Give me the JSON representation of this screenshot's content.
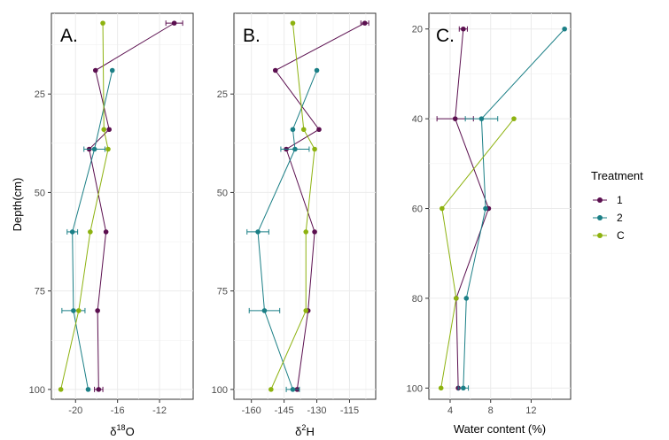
{
  "colors": {
    "1": "#5b0f4f",
    "2": "#1b7f86",
    "C": "#8db20f"
  },
  "legend": {
    "title": "Treatment",
    "items": [
      {
        "key": "1",
        "label": "1"
      },
      {
        "key": "2",
        "label": "2"
      },
      {
        "key": "C",
        "label": "C"
      }
    ]
  },
  "chart_data": [
    {
      "type": "line",
      "panel_label": "A.",
      "xlabel": "δ18O",
      "xlabel_main": "δ",
      "xlabel_sup": "18",
      "xlabel_tail": "O",
      "ylabel": "Depth(cm)",
      "xlim": [
        -22.3,
        -8.8
      ],
      "ylim": [
        4.5,
        102.5
      ],
      "y_reversed": true,
      "grid": true,
      "x_ticks": [
        -20,
        -16,
        -12
      ],
      "x_tick_labels": [
        "-20",
        "-16",
        "-12"
      ],
      "y_ticks": [
        25,
        50,
        75,
        100
      ],
      "y_tick_labels": [
        "25",
        "50",
        "75",
        "100"
      ],
      "series": [
        {
          "name": "1",
          "points": [
            {
              "x": -10.6,
              "y": 7,
              "xerr": 0.8
            },
            {
              "x": -18.1,
              "y": 19,
              "xerr": 0.0
            },
            {
              "x": -16.8,
              "y": 34,
              "xerr": 0.0
            },
            {
              "x": -18.7,
              "y": 39,
              "xerr": 0.0
            },
            {
              "x": -17.1,
              "y": 60,
              "xerr": 0.0
            },
            {
              "x": -17.9,
              "y": 80,
              "xerr": 0.0
            },
            {
              "x": -17.8,
              "y": 100,
              "xerr": 0.4
            }
          ]
        },
        {
          "name": "2",
          "points": [
            {
              "x": -16.5,
              "y": 19,
              "xerr": 0.0
            },
            {
              "x": -18.2,
              "y": 39,
              "xerr": 1.0
            },
            {
              "x": -20.3,
              "y": 60,
              "xerr": 0.5
            },
            {
              "x": -20.2,
              "y": 80,
              "xerr": 1.1
            },
            {
              "x": -18.8,
              "y": 100,
              "xerr": 0.0
            }
          ]
        },
        {
          "name": "C",
          "points": [
            {
              "x": -17.4,
              "y": 7,
              "xerr": 0.0
            },
            {
              "x": -17.3,
              "y": 34,
              "xerr": 0.0
            },
            {
              "x": -16.9,
              "y": 39,
              "xerr": 0.0
            },
            {
              "x": -18.6,
              "y": 60,
              "xerr": 0.0
            },
            {
              "x": -19.7,
              "y": 80,
              "xerr": 0.0
            },
            {
              "x": -21.4,
              "y": 100,
              "xerr": 0.0
            }
          ]
        }
      ]
    },
    {
      "type": "line",
      "panel_label": "B.",
      "xlabel": "δ2H",
      "xlabel_main": "δ",
      "xlabel_sup": "2",
      "xlabel_tail": "H",
      "ylabel": "",
      "xlim": [
        -168,
        -103
      ],
      "ylim": [
        4.5,
        102.5
      ],
      "y_reversed": true,
      "grid": true,
      "x_ticks": [
        -160,
        -145,
        -130,
        -115
      ],
      "x_tick_labels": [
        "-160",
        "-145",
        "-130",
        "-115"
      ],
      "y_ticks": [
        25,
        50,
        75,
        100
      ],
      "y_tick_labels": [
        "25",
        "50",
        "75",
        "100"
      ],
      "series": [
        {
          "name": "1",
          "points": [
            {
              "x": -108,
              "y": 7,
              "xerr": 1.8
            },
            {
              "x": -149,
              "y": 19,
              "xerr": 0.0
            },
            {
              "x": -129,
              "y": 34,
              "xerr": 0.0
            },
            {
              "x": -144,
              "y": 39,
              "xerr": 0.0
            },
            {
              "x": -131,
              "y": 60,
              "xerr": 0.0
            },
            {
              "x": -134,
              "y": 80,
              "xerr": 0.0
            },
            {
              "x": -139,
              "y": 100,
              "xerr": 0.0
            }
          ]
        },
        {
          "name": "2",
          "points": [
            {
              "x": -130,
              "y": 19,
              "xerr": 0.0
            },
            {
              "x": -141,
              "y": 34,
              "xerr": 0.0
            },
            {
              "x": -140,
              "y": 39,
              "xerr": 6.5
            },
            {
              "x": -157,
              "y": 60,
              "xerr": 5.0
            },
            {
              "x": -154,
              "y": 80,
              "xerr": 7.0
            },
            {
              "x": -141,
              "y": 100,
              "xerr": 3.0
            }
          ]
        },
        {
          "name": "C",
          "points": [
            {
              "x": -141,
              "y": 7,
              "xerr": 0.0
            },
            {
              "x": -136,
              "y": 34,
              "xerr": 0.0
            },
            {
              "x": -131,
              "y": 39,
              "xerr": 0.0
            },
            {
              "x": -135,
              "y": 60,
              "xerr": 0.0
            },
            {
              "x": -135,
              "y": 80,
              "xerr": 0.0
            },
            {
              "x": -151,
              "y": 100,
              "xerr": 0.0
            }
          ]
        }
      ]
    },
    {
      "type": "line",
      "panel_label": "C.",
      "xlabel": "Water content (%)",
      "ylabel": "",
      "xlim": [
        1.9,
        15.9
      ],
      "ylim": [
        16.5,
        102.5
      ],
      "y_reversed": true,
      "grid": true,
      "x_ticks": [
        4,
        8,
        12
      ],
      "x_tick_labels": [
        "4",
        "8",
        "12"
      ],
      "y_ticks": [
        20,
        40,
        60,
        80,
        100
      ],
      "y_tick_labels": [
        "20",
        "40",
        "60",
        "80",
        "100"
      ],
      "series": [
        {
          "name": "1",
          "points": [
            {
              "x": 5.3,
              "y": 20,
              "xerr": 0.4
            },
            {
              "x": 4.5,
              "y": 40,
              "xerr": 1.8
            },
            {
              "x": 7.8,
              "y": 60,
              "xerr": 0.0
            },
            {
              "x": 4.6,
              "y": 80,
              "xerr": 0.0
            },
            {
              "x": 4.8,
              "y": 100,
              "xerr": 0.0
            }
          ]
        },
        {
          "name": "2",
          "points": [
            {
              "x": 15.3,
              "y": 20,
              "xerr": 0.0
            },
            {
              "x": 7.1,
              "y": 40,
              "xerr": 1.6
            },
            {
              "x": 7.5,
              "y": 60,
              "xerr": 0.0
            },
            {
              "x": 5.6,
              "y": 80,
              "xerr": 0.0
            },
            {
              "x": 5.3,
              "y": 100,
              "xerr": 0.5
            }
          ]
        },
        {
          "name": "C",
          "points": [
            {
              "x": 10.3,
              "y": 40,
              "xerr": 0.0
            },
            {
              "x": 3.2,
              "y": 60,
              "xerr": 0.0
            },
            {
              "x": 4.6,
              "y": 80,
              "xerr": 0.0
            },
            {
              "x": 3.1,
              "y": 100,
              "xerr": 0.0
            }
          ]
        }
      ]
    }
  ]
}
